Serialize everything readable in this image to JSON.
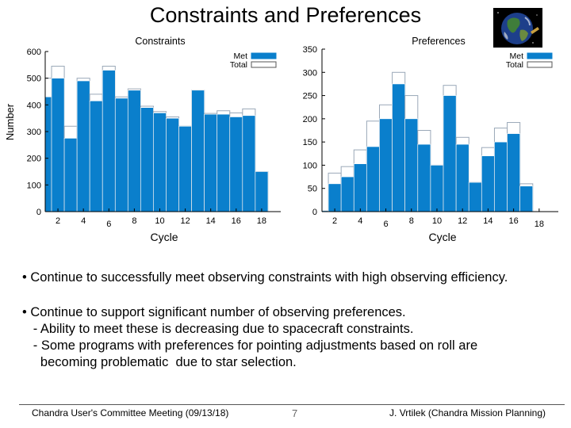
{
  "slide": {
    "title": "Constraints and Preferences",
    "bullets": [
      {
        "lines": [
          "• Continue to successfully meet observing constraints with high observing efficiency."
        ]
      },
      {
        "lines": [
          "• Continue to support significant number of observing preferences.",
          "   - Ability to meet these is decreasing due to spacecraft constraints.",
          "   - Some programs with preferences for pointing adjustments based on roll are",
          "     becoming problematic  due to star selection."
        ]
      }
    ],
    "footer": {
      "left": "Chandra User's Committee Meeting (09/13/18)",
      "page": "7",
      "right": "J. Vrtilek (Chandra Mission Planning)"
    },
    "logo_icon": "earth-globe-icon"
  },
  "colors": {
    "met": "#0a7fcc",
    "total_fill": "#ffffff",
    "total_stroke": "#9aa8b8",
    "axis": "#000000"
  },
  "chart_data": [
    {
      "type": "bar",
      "title": "Constraints",
      "xlabel": "Cycle",
      "ylabel": "Number",
      "x": [
        1,
        2,
        3,
        4,
        5,
        6,
        7,
        8,
        9,
        10,
        11,
        12,
        13,
        14,
        15,
        16,
        17,
        18,
        19
      ],
      "xticks": [
        2,
        4,
        6,
        8,
        10,
        12,
        14,
        16,
        18
      ],
      "yticks": [
        0,
        100,
        200,
        300,
        400,
        500,
        600
      ],
      "ylim": [
        0,
        600
      ],
      "xlim": [
        1,
        19.5
      ],
      "legend": [
        "Met",
        "Total"
      ],
      "legend_position": "top-right",
      "series": [
        {
          "name": "Met",
          "values": [
            430,
            500,
            275,
            490,
            415,
            530,
            425,
            455,
            390,
            370,
            350,
            320,
            455,
            365,
            365,
            355,
            360,
            150,
            0
          ]
        },
        {
          "name": "Total",
          "values": [
            500,
            545,
            320,
            500,
            440,
            545,
            430,
            460,
            395,
            375,
            355,
            320,
            455,
            368,
            378,
            370,
            385,
            150,
            0
          ]
        }
      ]
    },
    {
      "type": "bar",
      "title": "Preferences",
      "xlabel": "Cycle",
      "ylabel": "",
      "x": [
        1,
        2,
        3,
        4,
        5,
        6,
        7,
        8,
        9,
        10,
        11,
        12,
        13,
        14,
        15,
        16,
        17,
        18,
        19
      ],
      "xticks": [
        2,
        4,
        6,
        8,
        10,
        12,
        14,
        16,
        18
      ],
      "yticks": [
        0,
        50,
        100,
        150,
        200,
        250,
        300,
        350
      ],
      "ylim": [
        0,
        350
      ],
      "xlim": [
        1,
        19.5
      ],
      "legend": [
        "Met",
        "Total"
      ],
      "legend_position": "top-right",
      "series": [
        {
          "name": "Met",
          "values": [
            2,
            60,
            75,
            103,
            140,
            200,
            275,
            200,
            145,
            100,
            250,
            145,
            63,
            120,
            150,
            168,
            55,
            0,
            0
          ]
        },
        {
          "name": "Total",
          "values": [
            2,
            83,
            97,
            133,
            195,
            230,
            300,
            250,
            175,
            100,
            272,
            160,
            63,
            138,
            180,
            192,
            60,
            0,
            0
          ]
        }
      ]
    }
  ]
}
